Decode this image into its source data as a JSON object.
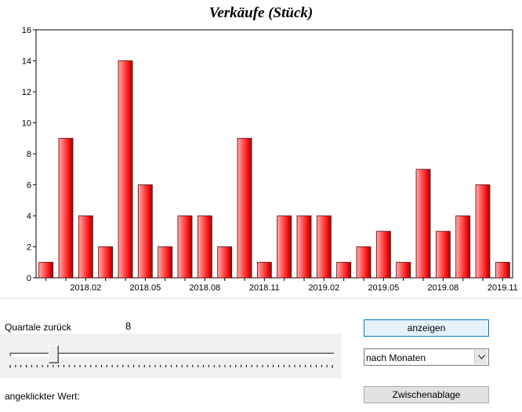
{
  "chart_data": {
    "type": "bar",
    "title": "Verkäufe (Stück)",
    "xlabel": "",
    "ylabel": "",
    "ylim": [
      0,
      16
    ],
    "yticks": [
      "0",
      "2",
      "4",
      "6",
      "8",
      "10",
      "12",
      "14",
      "16"
    ],
    "categories": [
      "2017.12",
      "2018.01",
      "2018.02",
      "2018.03",
      "2018.04",
      "2018.05",
      "2018.06",
      "2018.07",
      "2018.08",
      "2018.09",
      "2018.10",
      "2018.11",
      "2018.12",
      "2019.01",
      "2019.02",
      "2019.03",
      "2019.04",
      "2019.05",
      "2019.06",
      "2019.07",
      "2019.08",
      "2019.09",
      "2019.10",
      "2019.11"
    ],
    "xtick_labels": [
      "2018.02",
      "2018.05",
      "2018.08",
      "2018.11",
      "2019.02",
      "2019.05",
      "2019.08",
      "2019.11"
    ],
    "values": [
      1,
      9,
      4,
      2,
      14,
      6,
      2,
      4,
      4,
      2,
      9,
      1,
      4,
      4,
      4,
      1,
      2,
      3,
      1,
      7,
      3,
      4,
      6,
      1
    ],
    "grid": false,
    "colors": {
      "bar_light": "#f2a0a0",
      "bar_main": "#ff3a3a",
      "bar_dark": "#b80000"
    }
  },
  "controls": {
    "back_label": "Quartale zurück",
    "back_value": "8",
    "slider_value": 8,
    "slider_max": 60,
    "show_button": "anzeigen",
    "period_select": "nach Monaten",
    "clicked_label": "angeklickter Wert:",
    "clipboard_button": "Zwischenablage"
  }
}
